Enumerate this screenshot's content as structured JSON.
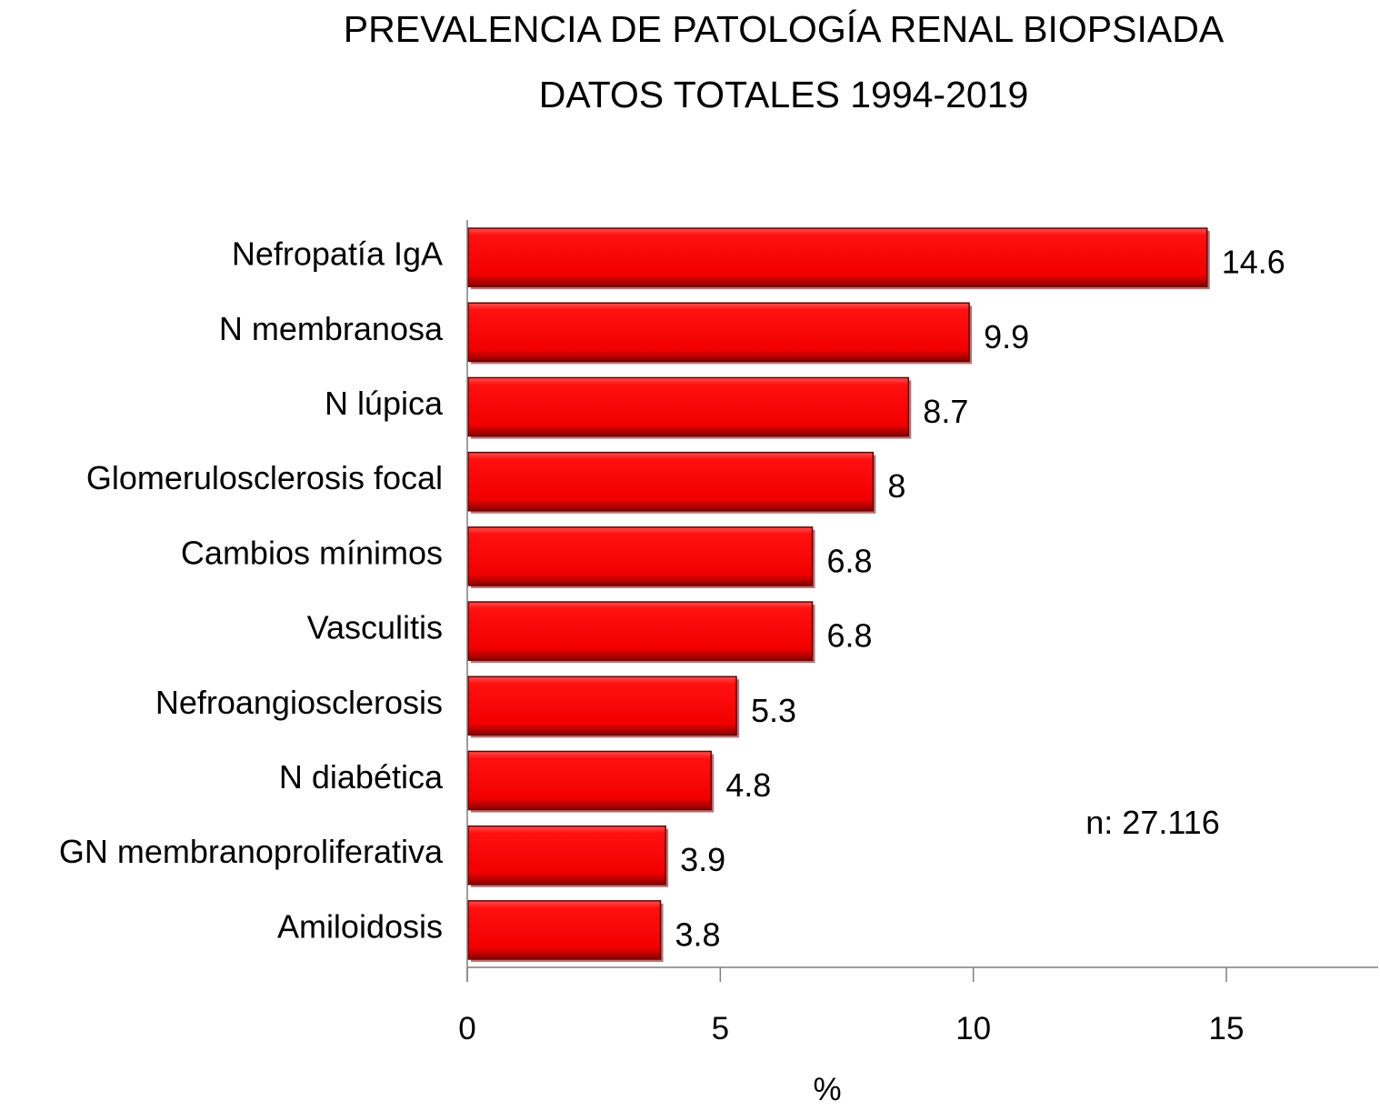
{
  "chart_data": {
    "type": "bar",
    "orientation": "horizontal",
    "title": [
      "PREVALENCIA DE PATOLOGÍA RENAL BIOPSIADA",
      "DATOS TOTALES 1994-2019"
    ],
    "categories": [
      "Nefropatía IgA",
      "N membranosa",
      "N lúpica",
      "Glomerulosclerosis focal",
      "Cambios mínimos",
      "Vasculitis",
      "Nefroangiosclerosis",
      "N diabética",
      "GN membranoproliferativa",
      "Amiloidosis"
    ],
    "values": [
      14.6,
      9.9,
      8.7,
      8,
      6.8,
      6.8,
      5.3,
      4.8,
      3.9,
      3.8
    ],
    "value_labels": [
      "14.6",
      "9.9",
      "8.7",
      "8",
      "6.8",
      "6.8",
      "5.3",
      "4.8",
      "3.9",
      "3.8"
    ],
    "xlabel": "%",
    "ylabel": "",
    "xlim": [
      0,
      18
    ],
    "xticks": [
      0,
      5,
      10,
      15
    ],
    "grid": false,
    "bar_color": "#ff0000",
    "annotation": "n: 27.116"
  }
}
